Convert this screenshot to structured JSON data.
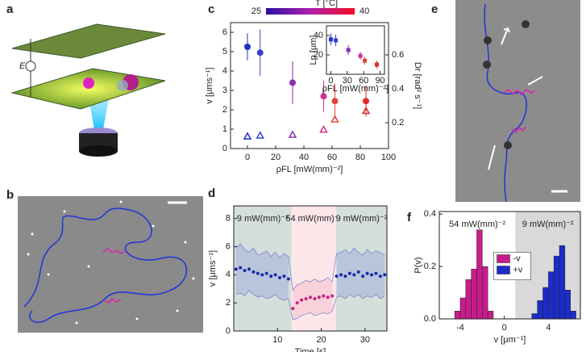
{
  "figure": {
    "panel_labels": [
      "a",
      "b",
      "c",
      "d",
      "e",
      "f"
    ],
    "diagram_labels": {
      "field": "E"
    }
  },
  "chart_data": [
    {
      "type": "scatter",
      "xlabel": "ρFL [mW(mm)⁻²]",
      "ylabel": "v [μms⁻¹]",
      "y2label": "Dr [rad² s⁻¹]",
      "xlim": [
        -12,
        100
      ],
      "ylim": [
        0,
        6.5
      ],
      "y2lim": [
        0.048,
        0.79
      ],
      "xticks": [
        0,
        20,
        40,
        60,
        80,
        100
      ],
      "yticks": [
        0,
        1,
        2,
        3,
        4,
        5,
        6
      ],
      "y2ticks": [
        0.2,
        0.4,
        0.6
      ],
      "x": [
        0,
        9,
        32,
        54,
        62,
        84
      ],
      "colors": [
        "#1f2fc0",
        "#3640c8",
        "#8a2fb0",
        "#d03090",
        "#e04838",
        "#e02828"
      ],
      "colorbar": {
        "title": "T [°C]",
        "lim": [
          25,
          40
        ],
        "ticks": [
          25,
          40
        ],
        "colors": [
          "#2a10a0",
          "#b020b0",
          "#f01020"
        ]
      },
      "series": [
        {
          "marker": "circle",
          "values": [
            5.25,
            4.95,
            3.4,
            2.7,
            2.45,
            2.45
          ],
          "errors": [
            0.7,
            1.2,
            1.1,
            0.8,
            0.9,
            0.8
          ]
        },
        {
          "marker": "triangle",
          "axis": "y2",
          "values": [
            0.12,
            0.125,
            0.13,
            0.16,
            0.22,
            0.27
          ]
        }
      ]
    },
    {
      "type": "scatter",
      "xlabel": "ρFL [mW(mm)⁻²]",
      "ylabel": "Lp [μm]",
      "xlim": [
        -8,
        98
      ],
      "ylim": [
        0,
        50
      ],
      "xticks": [
        0,
        30,
        60,
        90
      ],
      "yticks": [
        20,
        40
      ],
      "x": [
        0,
        9,
        32,
        54,
        62,
        84
      ],
      "colors": [
        "#1f2fc0",
        "#3640c8",
        "#8a2fb0",
        "#d03090",
        "#e04838",
        "#e02828"
      ],
      "series": [
        {
          "marker": "square",
          "values": [
            36,
            35,
            25,
            19,
            14,
            10
          ],
          "errors": [
            6,
            6,
            5,
            4,
            4,
            4
          ]
        }
      ]
    },
    {
      "type": "line",
      "xlabel": "Time [s]",
      "ylabel": "v [μms⁻¹]",
      "xlim": [
        0,
        35
      ],
      "ylim": [
        0,
        8.9
      ],
      "xticks": [
        10,
        20,
        30
      ],
      "yticks": [
        0,
        2,
        4,
        6,
        8
      ],
      "regions": [
        {
          "start": 0,
          "end": 13.2,
          "color": "#d4dedb",
          "band_color": "#a9b4dc",
          "line_color": "#1a2aa8",
          "label": "9 mW(mm)⁻²"
        },
        {
          "start": 13.2,
          "end": 23.4,
          "color": "#fbe6ea",
          "band_color": "#f7c4cc",
          "line_color": "#c8208c",
          "label": "54 mW(mm)⁻²"
        },
        {
          "start": 23.4,
          "end": 35,
          "color": "#d4dedb",
          "band_color": "#a9b4dc",
          "line_color": "#1a2aa8",
          "label": "9 mW(mm)⁻²"
        }
      ],
      "x": [
        0.5,
        1.5,
        2.5,
        3.5,
        4.5,
        5.5,
        6.5,
        7.5,
        8.5,
        9.5,
        10.5,
        11.5,
        12.5,
        13.5,
        14.5,
        15.5,
        16.5,
        17.5,
        18.5,
        19.5,
        20.5,
        21.5,
        22.5,
        23.5,
        24.5,
        25.5,
        26.5,
        27.5,
        28.5,
        29.5,
        30.5,
        31.5,
        32.5,
        33.5,
        34.5
      ],
      "values": [
        4.4,
        4.5,
        4.3,
        4.4,
        4.2,
        4.1,
        4.0,
        4.1,
        3.9,
        4.0,
        3.8,
        3.9,
        3.7,
        1.6,
        2.0,
        2.2,
        2.3,
        2.4,
        2.3,
        2.4,
        2.5,
        2.4,
        2.5,
        3.9,
        4.0,
        3.9,
        4.1,
        4.0,
        4.2,
        3.9,
        4.1,
        4.0,
        4.1,
        3.9,
        4.0
      ],
      "upper": [
        5.9,
        6.2,
        5.8,
        5.6,
        5.9,
        5.4,
        5.5,
        5.7,
        5.3,
        5.6,
        5.2,
        5.5,
        5.3,
        2.9,
        3.3,
        3.4,
        3.6,
        3.5,
        3.7,
        3.5,
        3.6,
        3.8,
        3.5,
        5.5,
        5.6,
        5.8,
        5.5,
        5.9,
        5.6,
        5.4,
        5.8,
        5.5,
        5.7,
        5.6,
        5.4
      ],
      "lower": [
        2.6,
        2.7,
        2.5,
        2.9,
        2.6,
        2.4,
        2.5,
        2.3,
        2.4,
        2.6,
        2.3,
        2.2,
        2.3,
        0.8,
        0.9,
        1.1,
        1.2,
        1.3,
        1.1,
        1.2,
        1.3,
        1.2,
        1.4,
        2.4,
        2.5,
        2.3,
        2.6,
        2.4,
        2.6,
        2.3,
        2.5,
        2.4,
        2.6,
        2.3,
        2.5
      ]
    },
    {
      "type": "histogram",
      "xlabel": "v [μm⁻¹]",
      "ylabel": "P(v)",
      "xlim": [
        -5.9,
        6.9
      ],
      "ylim": [
        0,
        0.41
      ],
      "xticks": [
        -4,
        0,
        4
      ],
      "yticks": [
        {
          "value": 0,
          "label": "0.0"
        },
        0.2,
        0.4
      ],
      "legend": "center",
      "regions": [
        {
          "start": -5.9,
          "end": 1,
          "color": "#ffffff",
          "line_color": "#c8208c",
          "label": "54 mW(mm)⁻²"
        },
        {
          "start": 1,
          "end": 6.9,
          "color": "#d9d9d9",
          "line_color": "#1a2aa8",
          "label": "9 mW(mm)⁻²"
        }
      ],
      "series": [
        {
          "name": "-v",
          "color": "#c81c8c",
          "bins": [
            -4.5,
            -4,
            -3.5,
            -3,
            -2.5,
            -2,
            -1.5,
            -1
          ],
          "values": [
            0.03,
            0.08,
            0.15,
            0.19,
            0.34,
            0.2,
            0.03
          ]
        },
        {
          "name": "+v",
          "color": "#1c2cc8",
          "bins": [
            2.5,
            3,
            3.5,
            4,
            4.5,
            5,
            5.5,
            6,
            6.5
          ],
          "values": [
            0.02,
            0.07,
            0.12,
            0.18,
            0.24,
            0.28,
            0.11,
            0.03
          ]
        }
      ]
    }
  ]
}
